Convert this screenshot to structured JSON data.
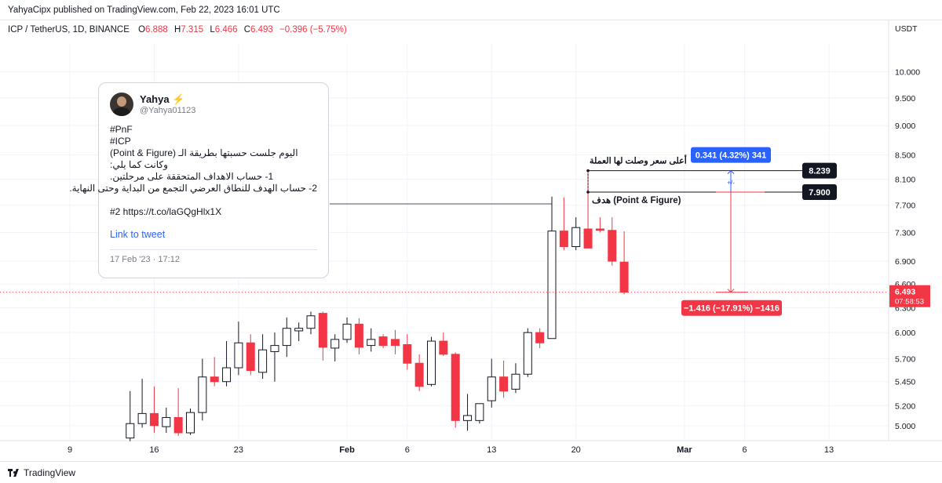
{
  "header": {
    "published_text": "YahyaCipx published on TradingView.com, Feb 22, 2023 16:01 UTC"
  },
  "legend": {
    "symbol": "ICP / TetherUS, 1D, BINANCE",
    "o_label": "O",
    "o": "6.888",
    "h_label": "H",
    "h": "7.315",
    "l_label": "L",
    "l": "6.466",
    "c_label": "C",
    "c": "6.493",
    "change": "−0.396 (−5.75%)"
  },
  "price_axis": {
    "currency": "USDT",
    "last_price": "6.493",
    "countdown": "07:58:53"
  },
  "footer": {
    "brand": "TradingView"
  },
  "tweet": {
    "name": "Yahya",
    "name_icon": "lightning-icon",
    "handle": "@Yahya01123",
    "lines": [
      "#PnF",
      "#ICP",
      "اليوم جلست حسبتها بطريقة الـ (Point & Figure)",
      "وكانت كما يلي:",
      "1- حساب الاهداف المتحققة على مرحلتين.",
      "2- حساب الهدف للنطاق العرضي التجمع من البداية وحتى النهاية.",
      "",
      "#2 https://t.co/laGQgHlx1X"
    ],
    "link_text": "Link to tweet",
    "date": "17 Feb '23 · 17:12"
  },
  "annotations": {
    "high_label": "أعلى سعر وصلت لها العملة",
    "target_label": "هدف (Point & Figure)",
    "high_badge": "8.239",
    "target_badge": "7.900",
    "up_measure": "0.341 (4.32%) 341",
    "down_measure": "−1.416 (−17.91%) −1416",
    "plus_minus": "+/-"
  },
  "colors": {
    "up_candle": "#ffffff",
    "up_border": "#131722",
    "down_candle": "#f23645",
    "blue_badge": "#2962ff",
    "dark_badge": "#131722",
    "grid": "#f0f3fa"
  },
  "chart_data": {
    "type": "candlestick",
    "y_scale": "log",
    "ylim": [
      4.93,
      10.4
    ],
    "y_ticks": [
      "10.000",
      "9.500",
      "9.000",
      "8.500",
      "8.100",
      "7.700",
      "7.300",
      "6.900",
      "6.600",
      "6.300",
      "6.000",
      "5.700",
      "5.450",
      "5.200",
      "5.000"
    ],
    "x_ticks": [
      {
        "date": "2023-01-09",
        "label": "9"
      },
      {
        "date": "2023-01-16",
        "label": "16"
      },
      {
        "date": "2023-01-23",
        "label": "23"
      },
      {
        "date": "2023-02-01",
        "label": "Feb"
      },
      {
        "date": "2023-02-06",
        "label": "6"
      },
      {
        "date": "2023-02-13",
        "label": "13"
      },
      {
        "date": "2023-02-20",
        "label": "20"
      },
      {
        "date": "2023-03-01",
        "label": "Mar"
      },
      {
        "date": "2023-03-06",
        "label": "6"
      },
      {
        "date": "2023-03-13",
        "label": "13"
      }
    ],
    "candles": [
      {
        "date": "2023-01-14",
        "o": 4.88,
        "h": 5.35,
        "l": 4.85,
        "c": 5.02
      },
      {
        "date": "2023-01-15",
        "o": 5.02,
        "h": 5.48,
        "l": 4.98,
        "c": 5.12
      },
      {
        "date": "2023-01-16",
        "o": 5.12,
        "h": 5.4,
        "l": 4.93,
        "c": 5.0
      },
      {
        "date": "2023-01-17",
        "o": 4.99,
        "h": 5.18,
        "l": 4.93,
        "c": 5.08
      },
      {
        "date": "2023-01-18",
        "o": 5.08,
        "h": 5.38,
        "l": 4.9,
        "c": 4.93
      },
      {
        "date": "2023-01-19",
        "o": 4.93,
        "h": 5.17,
        "l": 4.91,
        "c": 5.13
      },
      {
        "date": "2023-01-20",
        "o": 5.13,
        "h": 5.7,
        "l": 5.05,
        "c": 5.5
      },
      {
        "date": "2023-01-21",
        "o": 5.5,
        "h": 5.72,
        "l": 5.4,
        "c": 5.45
      },
      {
        "date": "2023-01-22",
        "o": 5.45,
        "h": 5.9,
        "l": 5.4,
        "c": 5.6
      },
      {
        "date": "2023-01-23",
        "o": 5.6,
        "h": 6.13,
        "l": 5.52,
        "c": 5.88
      },
      {
        "date": "2023-01-24",
        "o": 5.88,
        "h": 5.98,
        "l": 5.52,
        "c": 5.57
      },
      {
        "date": "2023-01-25",
        "o": 5.55,
        "h": 5.98,
        "l": 5.48,
        "c": 5.8
      },
      {
        "date": "2023-01-26",
        "o": 5.78,
        "h": 6.0,
        "l": 5.45,
        "c": 5.85
      },
      {
        "date": "2023-01-27",
        "o": 5.85,
        "h": 6.18,
        "l": 5.72,
        "c": 6.05
      },
      {
        "date": "2023-01-28",
        "o": 6.02,
        "h": 6.12,
        "l": 5.9,
        "c": 6.05
      },
      {
        "date": "2023-01-29",
        "o": 6.05,
        "h": 6.25,
        "l": 5.98,
        "c": 6.2
      },
      {
        "date": "2023-01-30",
        "o": 6.23,
        "h": 6.25,
        "l": 5.68,
        "c": 5.83
      },
      {
        "date": "2023-01-31",
        "o": 5.82,
        "h": 5.98,
        "l": 5.67,
        "c": 5.92
      },
      {
        "date": "2023-02-01",
        "o": 5.92,
        "h": 6.18,
        "l": 5.88,
        "c": 6.1
      },
      {
        "date": "2023-02-02",
        "o": 6.1,
        "h": 6.17,
        "l": 5.75,
        "c": 5.83
      },
      {
        "date": "2023-02-03",
        "o": 5.85,
        "h": 6.05,
        "l": 5.78,
        "c": 5.92
      },
      {
        "date": "2023-02-04",
        "o": 5.95,
        "h": 5.98,
        "l": 5.82,
        "c": 5.85
      },
      {
        "date": "2023-02-05",
        "o": 5.92,
        "h": 6.03,
        "l": 5.75,
        "c": 5.85
      },
      {
        "date": "2023-02-06",
        "o": 5.86,
        "h": 5.98,
        "l": 5.58,
        "c": 5.65
      },
      {
        "date": "2023-02-07",
        "o": 5.65,
        "h": 5.75,
        "l": 5.35,
        "c": 5.4
      },
      {
        "date": "2023-02-08",
        "o": 5.42,
        "h": 5.95,
        "l": 5.4,
        "c": 5.9
      },
      {
        "date": "2023-02-09",
        "o": 5.9,
        "h": 6.0,
        "l": 5.73,
        "c": 5.75
      },
      {
        "date": "2023-02-10",
        "o": 5.75,
        "h": 5.77,
        "l": 4.98,
        "c": 5.05
      },
      {
        "date": "2023-02-11",
        "o": 5.05,
        "h": 5.32,
        "l": 4.95,
        "c": 5.1
      },
      {
        "date": "2023-02-12",
        "o": 5.05,
        "h": 5.22,
        "l": 5.02,
        "c": 5.22
      },
      {
        "date": "2023-02-13",
        "o": 5.25,
        "h": 5.7,
        "l": 5.18,
        "c": 5.5
      },
      {
        "date": "2023-02-14",
        "o": 5.5,
        "h": 5.68,
        "l": 5.28,
        "c": 5.35
      },
      {
        "date": "2023-02-15",
        "o": 5.37,
        "h": 5.65,
        "l": 5.33,
        "c": 5.53
      },
      {
        "date": "2023-02-16",
        "o": 5.53,
        "h": 6.05,
        "l": 5.5,
        "c": 6.0
      },
      {
        "date": "2023-02-17",
        "o": 6.0,
        "h": 6.05,
        "l": 5.82,
        "c": 5.88
      },
      {
        "date": "2023-02-18",
        "o": 5.93,
        "h": 7.83,
        "l": 5.93,
        "c": 7.32
      },
      {
        "date": "2023-02-19",
        "o": 7.32,
        "h": 7.82,
        "l": 7.05,
        "c": 7.1
      },
      {
        "date": "2023-02-20",
        "o": 7.1,
        "h": 7.52,
        "l": 7.05,
        "c": 7.37
      },
      {
        "date": "2023-02-21",
        "o": 7.35,
        "h": 8.24,
        "l": 7.08,
        "c": 7.08
      },
      {
        "date": "2023-02-22",
        "o": 7.35,
        "h": 7.52,
        "l": 7.3,
        "c": 7.33
      }
    ],
    "candles_extra": [
      {
        "date": "2023-02-23",
        "o": 7.33,
        "h": 7.52,
        "l": 6.84,
        "c": 6.9
      },
      {
        "date": "2023-02-24",
        "o": 6.888,
        "h": 7.315,
        "l": 6.466,
        "c": 6.493
      }
    ],
    "levels": {
      "high": 8.239,
      "target": 7.9,
      "last": 6.493
    }
  }
}
